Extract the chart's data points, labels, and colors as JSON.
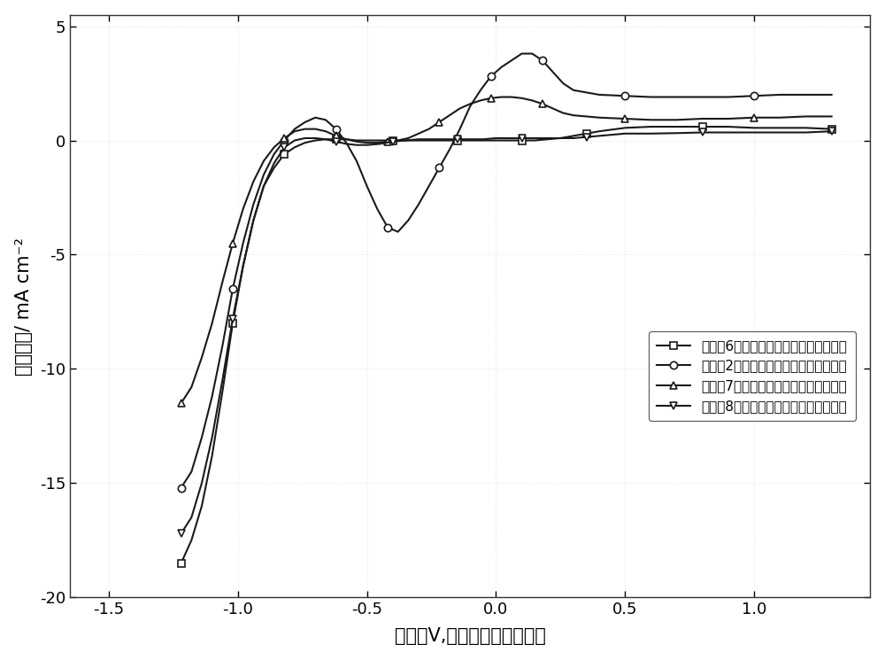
{
  "xlabel": "电位（V,相对于标准氢电极）",
  "ylabel": "电流密度/ mA cm⁻²",
  "xlim": [
    -1.65,
    1.45
  ],
  "ylim": [
    -20,
    5.5
  ],
  "xticks": [
    -1.5,
    -1.0,
    -0.5,
    0.0,
    0.5,
    1.0
  ],
  "yticks": [
    -20,
    -15,
    -10,
    -5,
    0,
    5
  ],
  "legend_labels": [
    "实施例6中的二氧化碳电化学还原催化剂",
    "实施例2中的二氧化碳电化学还原催化剂",
    "实施例7中的二氧化碳电化学还原催化剂",
    "实施例8中的二氧化碳电化学还原催化剂"
  ],
  "markers": [
    "s",
    "o",
    "^",
    "v"
  ],
  "line_color": "#1a1a1a",
  "background_color": "#ffffff",
  "curve6_x": [
    -1.22,
    -1.18,
    -1.14,
    -1.1,
    -1.06,
    -1.02,
    -0.98,
    -0.94,
    -0.9,
    -0.86,
    -0.82,
    -0.78,
    -0.74,
    -0.7,
    -0.66,
    -0.62,
    -0.58,
    -0.54,
    -0.5,
    -0.45,
    -0.4,
    -0.35,
    -0.3,
    -0.25,
    -0.2,
    -0.15,
    -0.1,
    -0.05,
    0.0,
    0.05,
    0.1,
    0.15,
    0.2,
    0.25,
    0.3,
    0.35,
    0.4,
    0.5,
    0.6,
    0.7,
    0.8,
    0.9,
    1.0,
    1.1,
    1.2,
    1.3
  ],
  "curve6_y": [
    -18.5,
    -17.5,
    -16.0,
    -13.8,
    -11.0,
    -8.0,
    -5.5,
    -3.5,
    -2.0,
    -1.2,
    -0.6,
    -0.3,
    -0.1,
    0.0,
    0.05,
    0.05,
    0.05,
    0.0,
    0.0,
    0.0,
    0.0,
    0.0,
    0.0,
    0.0,
    0.0,
    0.0,
    0.0,
    0.0,
    0.0,
    0.0,
    0.0,
    0.0,
    0.05,
    0.1,
    0.2,
    0.3,
    0.4,
    0.55,
    0.6,
    0.6,
    0.6,
    0.6,
    0.55,
    0.55,
    0.55,
    0.5
  ],
  "curve2_x": [
    -1.22,
    -1.18,
    -1.14,
    -1.1,
    -1.06,
    -1.02,
    -0.98,
    -0.94,
    -0.9,
    -0.86,
    -0.82,
    -0.78,
    -0.74,
    -0.7,
    -0.66,
    -0.62,
    -0.58,
    -0.54,
    -0.5,
    -0.46,
    -0.42,
    -0.38,
    -0.34,
    -0.3,
    -0.26,
    -0.22,
    -0.18,
    -0.14,
    -0.1,
    -0.06,
    -0.02,
    0.02,
    0.06,
    0.1,
    0.14,
    0.18,
    0.22,
    0.26,
    0.3,
    0.4,
    0.5,
    0.6,
    0.7,
    0.8,
    0.9,
    1.0,
    1.1,
    1.2,
    1.3
  ],
  "curve2_y": [
    -15.2,
    -14.5,
    -13.0,
    -11.2,
    -9.0,
    -6.5,
    -4.5,
    -2.8,
    -1.5,
    -0.6,
    0.0,
    0.5,
    0.8,
    1.0,
    0.9,
    0.5,
    -0.1,
    -0.9,
    -2.0,
    -3.0,
    -3.8,
    -4.0,
    -3.5,
    -2.8,
    -2.0,
    -1.2,
    -0.4,
    0.5,
    1.5,
    2.2,
    2.8,
    3.2,
    3.5,
    3.8,
    3.8,
    3.5,
    3.0,
    2.5,
    2.2,
    2.0,
    1.95,
    1.9,
    1.9,
    1.9,
    1.9,
    1.95,
    2.0,
    2.0,
    2.0
  ],
  "curve7_x": [
    -1.22,
    -1.18,
    -1.14,
    -1.1,
    -1.06,
    -1.02,
    -0.98,
    -0.94,
    -0.9,
    -0.86,
    -0.82,
    -0.78,
    -0.74,
    -0.7,
    -0.66,
    -0.62,
    -0.58,
    -0.54,
    -0.5,
    -0.46,
    -0.42,
    -0.38,
    -0.34,
    -0.3,
    -0.26,
    -0.22,
    -0.18,
    -0.14,
    -0.1,
    -0.06,
    -0.02,
    0.02,
    0.06,
    0.1,
    0.14,
    0.18,
    0.22,
    0.26,
    0.3,
    0.4,
    0.5,
    0.6,
    0.7,
    0.8,
    0.9,
    1.0,
    1.1,
    1.2,
    1.3
  ],
  "curve7_y": [
    -11.5,
    -10.8,
    -9.5,
    -8.0,
    -6.2,
    -4.5,
    -3.0,
    -1.8,
    -0.9,
    -0.3,
    0.1,
    0.4,
    0.5,
    0.5,
    0.4,
    0.2,
    0.05,
    -0.05,
    -0.1,
    -0.1,
    -0.05,
    0.0,
    0.1,
    0.3,
    0.5,
    0.8,
    1.1,
    1.4,
    1.6,
    1.75,
    1.85,
    1.9,
    1.9,
    1.85,
    1.75,
    1.6,
    1.4,
    1.2,
    1.1,
    1.0,
    0.95,
    0.9,
    0.9,
    0.95,
    0.95,
    1.0,
    1.0,
    1.05,
    1.05
  ],
  "curve8_x": [
    -1.22,
    -1.18,
    -1.14,
    -1.1,
    -1.06,
    -1.02,
    -0.98,
    -0.94,
    -0.9,
    -0.86,
    -0.82,
    -0.78,
    -0.74,
    -0.7,
    -0.66,
    -0.62,
    -0.58,
    -0.54,
    -0.5,
    -0.45,
    -0.4,
    -0.35,
    -0.3,
    -0.25,
    -0.2,
    -0.15,
    -0.1,
    -0.05,
    0.0,
    0.05,
    0.1,
    0.15,
    0.2,
    0.25,
    0.3,
    0.35,
    0.4,
    0.5,
    0.6,
    0.7,
    0.8,
    0.9,
    1.0,
    1.1,
    1.2,
    1.3
  ],
  "curve8_y": [
    -17.2,
    -16.5,
    -15.0,
    -13.0,
    -10.5,
    -7.8,
    -5.5,
    -3.5,
    -2.0,
    -1.0,
    -0.3,
    0.0,
    0.1,
    0.1,
    0.05,
    -0.05,
    -0.15,
    -0.2,
    -0.2,
    -0.15,
    -0.05,
    0.0,
    0.05,
    0.05,
    0.05,
    0.05,
    0.05,
    0.05,
    0.1,
    0.1,
    0.1,
    0.1,
    0.1,
    0.1,
    0.1,
    0.15,
    0.2,
    0.3,
    0.3,
    0.32,
    0.35,
    0.35,
    0.35,
    0.35,
    0.35,
    0.4
  ]
}
